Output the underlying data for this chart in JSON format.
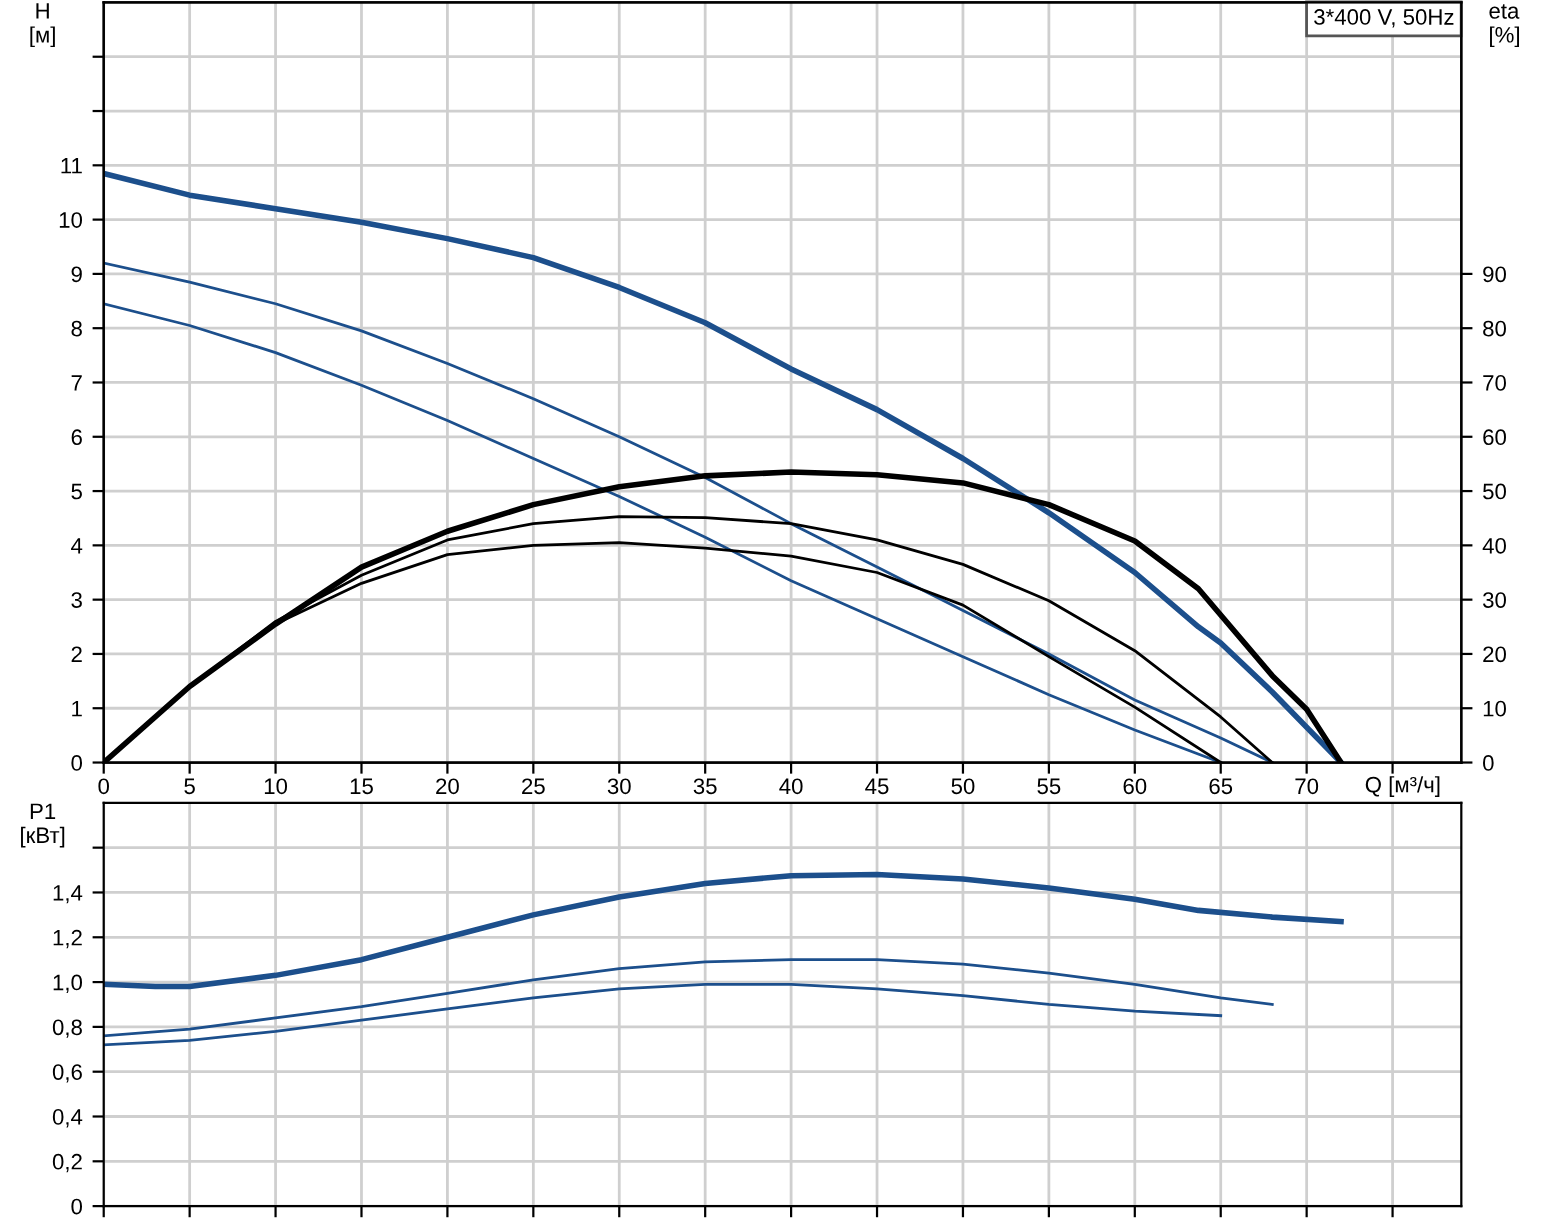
{
  "chart_data": [
    {
      "type": "line",
      "ylabel": "H\n[м]",
      "y2label": "eta\n[%]",
      "xlabel": "Q [м³/ч]",
      "annotations": [
        "3*400 V, 50Hz"
      ],
      "xlim": [
        0,
        79
      ],
      "xticks": [
        0,
        5,
        10,
        15,
        20,
        25,
        30,
        35,
        40,
        45,
        50,
        55,
        60,
        65,
        70,
        {
          "value": 75,
          "label": null
        }
      ],
      "ylim": [
        0,
        14
      ],
      "yticks": [
        0,
        1,
        2,
        3,
        4,
        5,
        6,
        7,
        8,
        9,
        10,
        11,
        {
          "value": 12,
          "label": null
        },
        {
          "value": 13,
          "label": null
        }
      ],
      "y2lim": [
        0,
        140
      ],
      "y2ticks": [
        0,
        10,
        20,
        30,
        40,
        50,
        60,
        70,
        80,
        90
      ],
      "grid": true,
      "line_style": "solid",
      "series": [
        {
          "color": "#1c4f8c",
          "x": [
            0,
            5,
            10,
            15,
            20,
            25,
            30,
            35,
            40,
            45,
            50,
            55,
            60,
            63.7,
            65,
            68,
            72
          ],
          "values": [
            10.85,
            10.45,
            10.2,
            9.95,
            9.65,
            9.3,
            8.75,
            8.1,
            7.25,
            6.5,
            5.6,
            4.6,
            3.5,
            2.5,
            2.2,
            1.3,
            0
          ]
        },
        {
          "color": "#1c4f8c",
          "x": [
            0,
            5,
            10,
            15,
            20,
            25,
            30,
            35,
            40,
            45,
            50,
            55,
            60,
            65,
            68
          ],
          "values": [
            9.2,
            8.85,
            8.45,
            7.95,
            7.35,
            6.7,
            6.0,
            5.25,
            4.4,
            3.6,
            2.8,
            2.0,
            1.15,
            0.45,
            0
          ]
        },
        {
          "color": "#1c4f8c",
          "x": [
            0,
            5,
            10,
            15,
            20,
            25,
            30,
            35,
            40,
            45,
            50,
            55,
            60,
            65
          ],
          "values": [
            8.45,
            8.05,
            7.55,
            6.95,
            6.3,
            5.6,
            4.9,
            4.15,
            3.35,
            2.65,
            1.95,
            1.25,
            0.6,
            0
          ]
        },
        {
          "color": "#000000",
          "axis": "y2",
          "x": [
            0,
            5,
            10,
            15,
            20,
            25,
            30,
            35,
            40,
            45,
            50,
            55,
            60,
            63.7,
            68,
            70,
            72
          ],
          "values": [
            0,
            14,
            25.5,
            36,
            42.6,
            47.5,
            50.8,
            52.8,
            53.5,
            53,
            51.5,
            47.5,
            40.8,
            32,
            16,
            9.8,
            0
          ]
        },
        {
          "color": "#000000",
          "axis": "y2",
          "x": [
            0,
            5,
            10,
            15,
            20,
            25,
            30,
            35,
            40,
            45,
            50,
            55,
            60,
            65,
            68
          ],
          "values": [
            0,
            14,
            26,
            34.5,
            41,
            44,
            45.3,
            45.1,
            44,
            41,
            36.5,
            29.8,
            20.6,
            8.4,
            0
          ]
        },
        {
          "color": "#000000",
          "axis": "y2",
          "x": [
            0,
            5,
            10,
            15,
            20,
            25,
            30,
            35,
            40,
            45,
            50,
            55,
            60,
            65
          ],
          "values": [
            0,
            14,
            25.5,
            33,
            38.3,
            40,
            40.5,
            39.5,
            38,
            35,
            29,
            19.5,
            10.2,
            0
          ]
        }
      ]
    },
    {
      "type": "line",
      "ylabel": "P1\n[кВт]",
      "xlim": [
        0,
        79
      ],
      "xticks": [
        0,
        5,
        10,
        15,
        20,
        25,
        30,
        35,
        40,
        45,
        50,
        55,
        60,
        65,
        70,
        75
      ],
      "ylim": [
        0,
        1.8
      ],
      "yticks": [
        0,
        {
          "value": 0.2,
          "label": "0,2"
        },
        {
          "value": 0.4,
          "label": "0,4"
        },
        {
          "value": 0.6,
          "label": "0,6"
        },
        {
          "value": 0.8,
          "label": "0,8"
        },
        {
          "value": 1.0,
          "label": "1,0"
        },
        {
          "value": 1.2,
          "label": "1,2"
        },
        {
          "value": 1.4,
          "label": "1,4"
        },
        {
          "value": 1.6,
          "label": null
        }
      ],
      "tick_labels": "y",
      "grid": true,
      "line_style": "solid",
      "series": [
        {
          "color": "#1c4f8c",
          "x": [
            0,
            3,
            5,
            10,
            15,
            20,
            25,
            30,
            35,
            40,
            45,
            50,
            55,
            60,
            63.7,
            68,
            72
          ],
          "values": [
            0.99,
            0.98,
            0.98,
            1.03,
            1.1,
            1.2,
            1.3,
            1.38,
            1.44,
            1.475,
            1.48,
            1.46,
            1.42,
            1.37,
            1.32,
            1.29,
            1.27
          ]
        },
        {
          "color": "#1c4f8c",
          "x": [
            0,
            5,
            10,
            15,
            20,
            25,
            30,
            35,
            40,
            45,
            50,
            55,
            60,
            65,
            68
          ],
          "values": [
            0.76,
            0.79,
            0.84,
            0.89,
            0.95,
            1.01,
            1.06,
            1.09,
            1.1,
            1.1,
            1.08,
            1.04,
            0.99,
            0.93,
            0.9
          ]
        },
        {
          "color": "#1c4f8c",
          "x": [
            0,
            5,
            10,
            15,
            20,
            25,
            30,
            35,
            40,
            45,
            50,
            55,
            60,
            65
          ],
          "values": [
            0.72,
            0.74,
            0.78,
            0.83,
            0.88,
            0.93,
            0.97,
            0.99,
            0.99,
            0.97,
            0.94,
            0.9,
            0.87,
            0.85
          ]
        }
      ]
    }
  ]
}
